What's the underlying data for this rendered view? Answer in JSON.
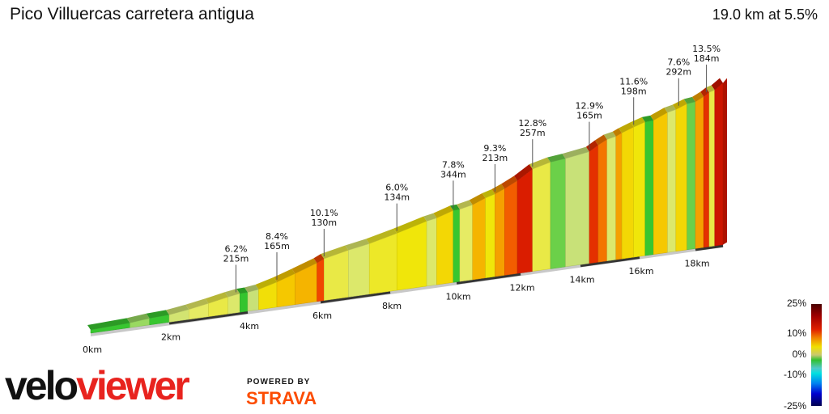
{
  "header": {
    "title": "Pico Villuercas carretera antigua",
    "summary": "19.0 km at 5.5%"
  },
  "chart_data": {
    "type": "area",
    "title": "Pico Villuercas carretera antigua",
    "distance_km": 19.0,
    "avg_gradient_pct": 5.5,
    "x_ticks": [
      "0km",
      "2km",
      "4km",
      "6km",
      "8km",
      "10km",
      "12km",
      "14km",
      "16km",
      "18km"
    ],
    "x_tick_values": [
      0,
      2,
      4,
      6,
      8,
      10,
      12,
      14,
      16,
      18
    ],
    "segments": [
      [
        1.0,
        1.0
      ],
      [
        0.5,
        2.5
      ],
      [
        0.5,
        1.0
      ],
      [
        0.5,
        3.5
      ],
      [
        0.5,
        4.5
      ],
      [
        0.5,
        5.0
      ],
      [
        0.3,
        4.0
      ],
      [
        0.2,
        0.5
      ],
      [
        0.3,
        3.0
      ],
      [
        0.5,
        6.5
      ],
      [
        0.5,
        8.0
      ],
      [
        0.6,
        8.5
      ],
      [
        0.2,
        11.0
      ],
      [
        0.7,
        5.0
      ],
      [
        0.6,
        4.0
      ],
      [
        0.8,
        5.5
      ],
      [
        0.9,
        6.0
      ],
      [
        0.3,
        4.0
      ],
      [
        0.5,
        7.0
      ],
      [
        0.2,
        1.0
      ],
      [
        0.4,
        4.5
      ],
      [
        0.4,
        8.5
      ],
      [
        0.3,
        6.0
      ],
      [
        0.3,
        9.0
      ],
      [
        0.4,
        10.5
      ],
      [
        0.5,
        12.8
      ],
      [
        0.6,
        5.0
      ],
      [
        0.5,
        2.0
      ],
      [
        0.8,
        3.0
      ],
      [
        0.3,
        12.0
      ],
      [
        0.3,
        10.0
      ],
      [
        0.3,
        4.0
      ],
      [
        0.2,
        9.0
      ],
      [
        0.4,
        7.0
      ],
      [
        0.4,
        6.0
      ],
      [
        0.3,
        1.0
      ],
      [
        0.5,
        8.0
      ],
      [
        0.3,
        4.0
      ],
      [
        0.4,
        7.0
      ],
      [
        0.3,
        2.0
      ],
      [
        0.3,
        9.0
      ],
      [
        0.2,
        12.0
      ],
      [
        0.2,
        5.0
      ],
      [
        0.3,
        13.5
      ]
    ],
    "segments_format": [
      "length_km",
      "gradient_pct"
    ],
    "annotations": [
      {
        "km": 3.7,
        "gradient": "6.2%",
        "length": "215m"
      },
      {
        "km": 4.8,
        "gradient": "8.4%",
        "length": "165m"
      },
      {
        "km": 6.1,
        "gradient": "10.1%",
        "length": "130m"
      },
      {
        "km": 8.2,
        "gradient": "6.0%",
        "length": "134m"
      },
      {
        "km": 9.9,
        "gradient": "7.8%",
        "length": "344m"
      },
      {
        "km": 11.2,
        "gradient": "9.3%",
        "length": "213m"
      },
      {
        "km": 12.4,
        "gradient": "12.8%",
        "length": "257m"
      },
      {
        "km": 14.3,
        "gradient": "12.9%",
        "length": "165m"
      },
      {
        "km": 15.8,
        "gradient": "11.6%",
        "length": "198m"
      },
      {
        "km": 17.4,
        "gradient": "7.6%",
        "length": "292m"
      },
      {
        "km": 18.4,
        "gradient": "13.5%",
        "length": "184m"
      }
    ],
    "legend": {
      "labels": [
        "25%",
        "10%",
        "0%",
        "-10%",
        "-25%"
      ],
      "range": [
        -25,
        25
      ]
    }
  },
  "branding": {
    "logo_part1": "velo",
    "logo_part2": "viewer",
    "powered_by": "POWERED BY",
    "strava": "STRAVA",
    "strava_color": "#fc4c02",
    "logo_accent": "#e8231e"
  }
}
